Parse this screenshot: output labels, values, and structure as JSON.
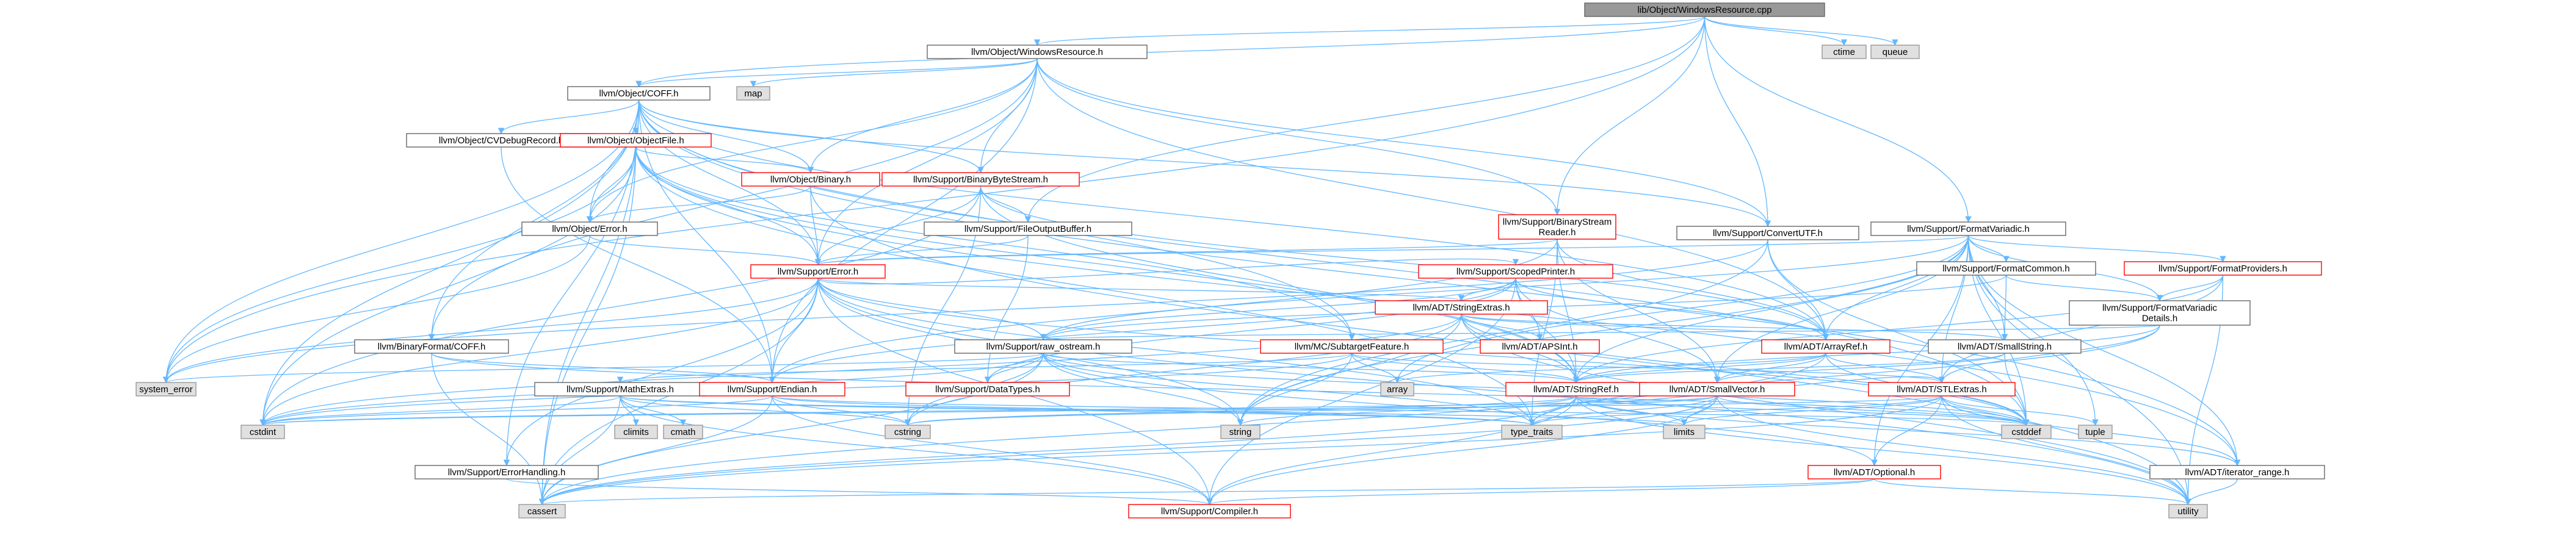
{
  "colors": {
    "edge": "#63b8ff",
    "root_fill": "#999999",
    "root_border": "#666666",
    "normal_fill": "#ffffff",
    "normal_border": "#666666",
    "red_border": "#ff0000",
    "system_fill": "#e0e0e0",
    "system_border": "#999999"
  },
  "nodes": [
    {
      "id": "root",
      "label": "lib/Object/WindowsResource.cpp",
      "style": "root"
    },
    {
      "id": "ctime",
      "label": "ctime",
      "style": "system"
    },
    {
      "id": "queue",
      "label": "queue",
      "style": "system"
    },
    {
      "id": "winres",
      "label": "llvm/Object/WindowsResource.h",
      "style": "normal"
    },
    {
      "id": "map",
      "label": "map",
      "style": "system"
    },
    {
      "id": "coff",
      "label": "llvm/Object/COFF.h",
      "style": "normal"
    },
    {
      "id": "cvdebug",
      "label": "llvm/Object/CVDebugRecord.h",
      "style": "normal"
    },
    {
      "id": "objfile",
      "label": "llvm/Object/ObjectFile.h",
      "style": "red"
    },
    {
      "id": "binary",
      "label": "llvm/Object/Binary.h",
      "style": "red"
    },
    {
      "id": "bbs",
      "label": "llvm/Support/BinaryByteStream.h",
      "style": "red"
    },
    {
      "id": "bsr",
      "label": "llvm/Support/BinaryStream\nReader.h",
      "style": "red"
    },
    {
      "id": "objerror",
      "label": "llvm/Object/Error.h",
      "style": "normal"
    },
    {
      "id": "fob",
      "label": "llvm/Support/FileOutputBuffer.h",
      "style": "normal"
    },
    {
      "id": "convutf",
      "label": "llvm/Support/ConvertUTF.h",
      "style": "normal"
    },
    {
      "id": "formatvariadic",
      "label": "llvm/Support/FormatVariadic.h",
      "style": "normal"
    },
    {
      "id": "formatcommon",
      "label": "llvm/Support/FormatCommon.h",
      "style": "normal"
    },
    {
      "id": "formatproviders",
      "label": "llvm/Support/FormatProviders.h",
      "style": "red"
    },
    {
      "id": "fvdetails",
      "label": "llvm/Support/FormatVariadic\nDetails.h",
      "style": "normal"
    },
    {
      "id": "supporterror",
      "label": "llvm/Support/Error.h",
      "style": "red"
    },
    {
      "id": "scopedprinter",
      "label": "llvm/Support/ScopedPrinter.h",
      "style": "red"
    },
    {
      "id": "stringextras",
      "label": "llvm/ADT/StringExtras.h",
      "style": "red"
    },
    {
      "id": "apsint",
      "label": "llvm/ADT/APSInt.h",
      "style": "red"
    },
    {
      "id": "arrayref",
      "label": "llvm/ADT/ArrayRef.h",
      "style": "red"
    },
    {
      "id": "smallstring",
      "label": "llvm/ADT/SmallString.h",
      "style": "normal"
    },
    {
      "id": "binformatcoff",
      "label": "llvm/BinaryFormat/COFF.h",
      "style": "normal"
    },
    {
      "id": "rawostream",
      "label": "llvm/Support/raw_ostream.h",
      "style": "normal"
    },
    {
      "id": "subtarget",
      "label": "llvm/MC/SubtargetFeature.h",
      "style": "red"
    },
    {
      "id": "mathextras",
      "label": "llvm/Support/MathExtras.h",
      "style": "normal"
    },
    {
      "id": "endian",
      "label": "llvm/Support/Endian.h",
      "style": "red"
    },
    {
      "id": "datatypes",
      "label": "llvm/Support/DataTypes.h",
      "style": "red"
    },
    {
      "id": "array",
      "label": "array",
      "style": "system"
    },
    {
      "id": "stringref",
      "label": "llvm/ADT/StringRef.h",
      "style": "red"
    },
    {
      "id": "smallvector",
      "label": "llvm/ADT/SmallVector.h",
      "style": "red"
    },
    {
      "id": "stlextras",
      "label": "llvm/ADT/STLExtras.h",
      "style": "red"
    },
    {
      "id": "system_error",
      "label": "system_error",
      "style": "system"
    },
    {
      "id": "cstdint",
      "label": "cstdint",
      "style": "system"
    },
    {
      "id": "climits",
      "label": "climits",
      "style": "system"
    },
    {
      "id": "cmath",
      "label": "cmath",
      "style": "system"
    },
    {
      "id": "errorhandling",
      "label": "llvm/Support/ErrorHandling.h",
      "style": "normal"
    },
    {
      "id": "cstring",
      "label": "cstring",
      "style": "system"
    },
    {
      "id": "string",
      "label": "string",
      "style": "system"
    },
    {
      "id": "typetraits",
      "label": "type_traits",
      "style": "system"
    },
    {
      "id": "limits",
      "label": "limits",
      "style": "system"
    },
    {
      "id": "optional",
      "label": "llvm/ADT/Optional.h",
      "style": "red"
    },
    {
      "id": "cstddef",
      "label": "cstddef",
      "style": "system"
    },
    {
      "id": "tuple",
      "label": "tuple",
      "style": "system"
    },
    {
      "id": "iteratorrange",
      "label": "llvm/ADT/iterator_range.h",
      "style": "normal"
    },
    {
      "id": "cassert",
      "label": "cassert",
      "style": "system"
    },
    {
      "id": "compiler",
      "label": "llvm/Support/Compiler.h",
      "style": "red"
    },
    {
      "id": "utility",
      "label": "utility",
      "style": "system"
    }
  ],
  "edges": [
    [
      "root",
      "winres"
    ],
    [
      "root",
      "ctime"
    ],
    [
      "root",
      "queue"
    ],
    [
      "root",
      "system_error"
    ],
    [
      "root",
      "bsr"
    ],
    [
      "root",
      "convutf"
    ],
    [
      "root",
      "fob"
    ],
    [
      "root",
      "formatvariadic"
    ],
    [
      "root",
      "coff"
    ],
    [
      "winres",
      "map"
    ],
    [
      "winres",
      "coff"
    ],
    [
      "winres",
      "binary"
    ],
    [
      "winres",
      "objerror"
    ],
    [
      "winres",
      "bbs"
    ],
    [
      "winres",
      "bsr"
    ],
    [
      "winres",
      "convutf"
    ],
    [
      "winres",
      "endian"
    ],
    [
      "winres",
      "supporterror"
    ],
    [
      "winres",
      "arrayref"
    ],
    [
      "winres",
      "binformatcoff"
    ],
    [
      "coff",
      "cvdebug"
    ],
    [
      "coff",
      "objfile"
    ],
    [
      "coff",
      "binary"
    ],
    [
      "coff",
      "objerror"
    ],
    [
      "coff",
      "bbs"
    ],
    [
      "coff",
      "convutf"
    ],
    [
      "coff",
      "endian"
    ],
    [
      "coff",
      "supporterror"
    ],
    [
      "coff",
      "binformatcoff"
    ],
    [
      "coff",
      "cassert"
    ],
    [
      "coff",
      "cstddef"
    ],
    [
      "coff",
      "cstdint"
    ],
    [
      "coff",
      "system_error"
    ],
    [
      "coff",
      "subtarget"
    ],
    [
      "coff",
      "iteratorrange"
    ],
    [
      "coff",
      "arrayref"
    ],
    [
      "coff",
      "errorhandling"
    ],
    [
      "cvdebug",
      "endian"
    ],
    [
      "objfile",
      "binary"
    ],
    [
      "objfile",
      "objerror"
    ],
    [
      "objfile",
      "supporterror"
    ],
    [
      "objfile",
      "subtarget"
    ],
    [
      "objfile",
      "cassert"
    ],
    [
      "objfile",
      "cstdint"
    ],
    [
      "objfile",
      "system_error"
    ],
    [
      "objfile",
      "iteratorrange"
    ],
    [
      "objfile",
      "stringref"
    ],
    [
      "objfile",
      "typetraits"
    ],
    [
      "binary",
      "objerror"
    ],
    [
      "binary",
      "supporterror"
    ],
    [
      "binary",
      "utility"
    ],
    [
      "bbs",
      "supporterror"
    ],
    [
      "bbs",
      "arrayref"
    ],
    [
      "bbs",
      "stringref"
    ],
    [
      "bbs",
      "fob"
    ],
    [
      "bbs",
      "cstdint"
    ],
    [
      "bbs",
      "cstring"
    ],
    [
      "bsr",
      "supporterror"
    ],
    [
      "bsr",
      "arrayref"
    ],
    [
      "bsr",
      "stringref"
    ],
    [
      "bsr",
      "endian"
    ],
    [
      "bsr",
      "typetraits"
    ],
    [
      "bsr",
      "smallvector"
    ],
    [
      "objerror",
      "supporterror"
    ],
    [
      "objerror",
      "system_error"
    ],
    [
      "fob",
      "supporterror"
    ],
    [
      "fob",
      "datatypes"
    ],
    [
      "convutf",
      "arrayref"
    ],
    [
      "convutf",
      "cstddef"
    ],
    [
      "convutf",
      "string"
    ],
    [
      "convutf",
      "system_error"
    ],
    [
      "formatvariadic",
      "formatcommon"
    ],
    [
      "formatvariadic",
      "formatproviders"
    ],
    [
      "formatvariadic",
      "fvdetails"
    ],
    [
      "formatvariadic",
      "arrayref"
    ],
    [
      "formatvariadic",
      "smallstring"
    ],
    [
      "formatvariadic",
      "smallvector"
    ],
    [
      "formatvariadic",
      "stringref"
    ],
    [
      "formatvariadic",
      "stlextras"
    ],
    [
      "formatvariadic",
      "rawostream"
    ],
    [
      "formatvariadic",
      "supporterror"
    ],
    [
      "formatvariadic",
      "optional"
    ],
    [
      "formatvariadic",
      "array"
    ],
    [
      "formatvariadic",
      "cstddef"
    ],
    [
      "formatvariadic",
      "string"
    ],
    [
      "formatvariadic",
      "tuple"
    ],
    [
      "formatvariadic",
      "utility"
    ],
    [
      "formatvariadic",
      "iteratorrange"
    ],
    [
      "formatcommon",
      "fvdetails"
    ],
    [
      "formatcommon",
      "smallstring"
    ],
    [
      "formatcommon",
      "rawostream"
    ],
    [
      "formatproviders",
      "fvdetails"
    ],
    [
      "formatproviders",
      "stlextras"
    ],
    [
      "formatproviders",
      "stringref"
    ],
    [
      "formatproviders",
      "utility"
    ],
    [
      "fvdetails",
      "stlextras"
    ],
    [
      "fvdetails",
      "stringref"
    ],
    [
      "fvdetails",
      "rawostream"
    ],
    [
      "fvdetails",
      "typetraits"
    ],
    [
      "supporterror",
      "scopedprinter"
    ],
    [
      "supporterror",
      "stringextras"
    ],
    [
      "supporterror",
      "rawostream"
    ],
    [
      "supporterror",
      "errorhandling"
    ],
    [
      "supporterror",
      "endian"
    ],
    [
      "supporterror",
      "cassert"
    ],
    [
      "supporterror",
      "cstdint"
    ],
    [
      "supporterror",
      "system_error"
    ],
    [
      "supporterror",
      "string"
    ],
    [
      "supporterror",
      "typetraits"
    ],
    [
      "supporterror",
      "utility"
    ],
    [
      "supporterror",
      "compiler"
    ],
    [
      "supporterror",
      "cstddef"
    ],
    [
      "scopedprinter",
      "stringextras"
    ],
    [
      "scopedprinter",
      "apsint"
    ],
    [
      "scopedprinter",
      "arrayref"
    ],
    [
      "scopedprinter",
      "smallvector"
    ],
    [
      "scopedprinter",
      "stringref"
    ],
    [
      "scopedprinter",
      "rawostream"
    ],
    [
      "scopedprinter",
      "datatypes"
    ],
    [
      "scopedprinter",
      "endian"
    ],
    [
      "scopedprinter",
      "compiler"
    ],
    [
      "stringextras",
      "apsint"
    ],
    [
      "stringextras",
      "arrayref"
    ],
    [
      "stringextras",
      "smallstring"
    ],
    [
      "stringextras",
      "stringref"
    ],
    [
      "stringextras",
      "cstddef"
    ],
    [
      "stringextras",
      "cstdint"
    ],
    [
      "stringextras",
      "cstring"
    ],
    [
      "stringextras",
      "string"
    ],
    [
      "stringextras",
      "utility"
    ],
    [
      "arrayref",
      "stringref"
    ],
    [
      "arrayref",
      "smallvector"
    ],
    [
      "arrayref",
      "stlextras"
    ],
    [
      "arrayref",
      "cassert"
    ],
    [
      "arrayref",
      "cstddef"
    ],
    [
      "arrayref",
      "array"
    ],
    [
      "smallstring",
      "stringref"
    ],
    [
      "smallstring",
      "smallvector"
    ],
    [
      "smallstring",
      "cstddef"
    ],
    [
      "binformatcoff",
      "endian"
    ],
    [
      "binformatcoff",
      "cassert"
    ],
    [
      "binformatcoff",
      "cstddef"
    ],
    [
      "rawostream",
      "stringref"
    ],
    [
      "rawostream",
      "datatypes"
    ],
    [
      "rawostream",
      "cassert"
    ],
    [
      "rawostream",
      "cstddef"
    ],
    [
      "rawostream",
      "cstdint"
    ],
    [
      "rawostream",
      "cstring"
    ],
    [
      "rawostream",
      "string"
    ],
    [
      "rawostream",
      "system_error"
    ],
    [
      "rawostream",
      "typetraits"
    ],
    [
      "rawostream",
      "optional"
    ],
    [
      "subtarget",
      "stringref"
    ],
    [
      "subtarget",
      "mathextras"
    ],
    [
      "subtarget",
      "array"
    ],
    [
      "subtarget",
      "string"
    ],
    [
      "subtarget",
      "stlextras"
    ],
    [
      "subtarget",
      "cstdint"
    ],
    [
      "mathextras",
      "cassert"
    ],
    [
      "mathextras",
      "climits"
    ],
    [
      "mathextras",
      "cmath"
    ],
    [
      "mathextras",
      "cstdint"
    ],
    [
      "mathextras",
      "cstring"
    ],
    [
      "mathextras",
      "limits"
    ],
    [
      "mathextras",
      "typetraits"
    ],
    [
      "mathextras",
      "compiler"
    ],
    [
      "endian",
      "cassert"
    ],
    [
      "endian",
      "cstddef"
    ],
    [
      "endian",
      "cstdint"
    ],
    [
      "endian",
      "cstring"
    ],
    [
      "endian",
      "typetraits"
    ],
    [
      "endian",
      "compiler"
    ],
    [
      "stringref",
      "stlextras"
    ],
    [
      "stringref",
      "iteratorrange"
    ],
    [
      "stringref",
      "cassert"
    ],
    [
      "stringref",
      "cstddef"
    ],
    [
      "stringref",
      "cstring"
    ],
    [
      "stringref",
      "limits"
    ],
    [
      "stringref",
      "string"
    ],
    [
      "stringref",
      "typetraits"
    ],
    [
      "stringref",
      "utility"
    ],
    [
      "stringref",
      "compiler"
    ],
    [
      "smallvector",
      "cassert"
    ],
    [
      "smallvector",
      "cstddef"
    ],
    [
      "smallvector",
      "cstdint"
    ],
    [
      "smallvector",
      "cstring"
    ],
    [
      "smallvector",
      "limits"
    ],
    [
      "smallvector",
      "typetraits"
    ],
    [
      "smallvector",
      "utility"
    ],
    [
      "smallvector",
      "compiler"
    ],
    [
      "stlextras",
      "optional"
    ],
    [
      "stlextras",
      "iteratorrange"
    ],
    [
      "stlextras",
      "cassert"
    ],
    [
      "stlextras",
      "cstddef"
    ],
    [
      "stlextras",
      "cstdint"
    ],
    [
      "stlextras",
      "limits"
    ],
    [
      "stlextras",
      "tuple"
    ],
    [
      "stlextras",
      "typetraits"
    ],
    [
      "stlextras",
      "utility"
    ],
    [
      "errorhandling",
      "compiler"
    ],
    [
      "optional",
      "cassert"
    ],
    [
      "optional",
      "utility"
    ],
    [
      "optional",
      "compiler"
    ],
    [
      "iteratorrange",
      "utility"
    ]
  ]
}
